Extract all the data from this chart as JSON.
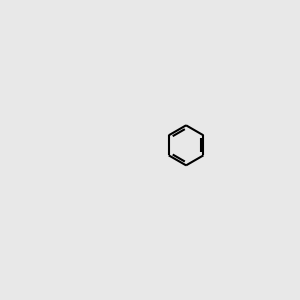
{
  "bg_color": "#e8e8e8",
  "bond_color": "#000000",
  "bond_width": 1.5,
  "font_size": 9,
  "atom_colors": {
    "O": "#ff0000",
    "N": "#0000ff",
    "Cl": "#00aa00",
    "C": "#000000"
  }
}
